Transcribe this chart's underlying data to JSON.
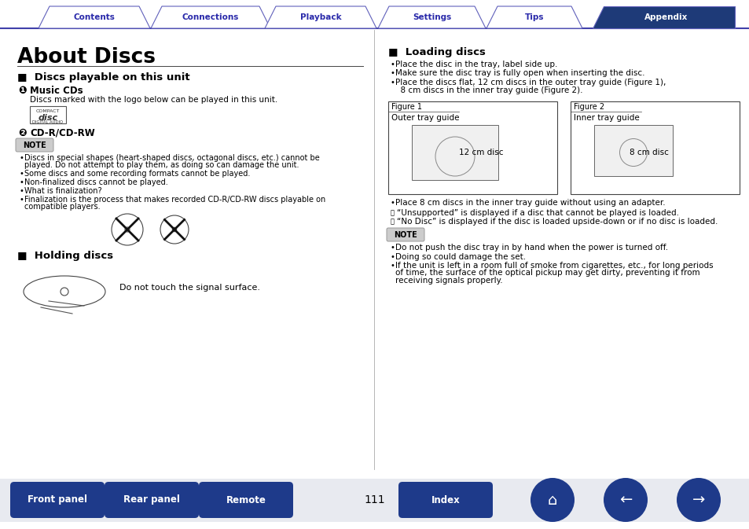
{
  "tab_labels": [
    "Contents",
    "Connections",
    "Playback",
    "Settings",
    "Tips",
    "Appendix"
  ],
  "tab_active": 5,
  "tab_active_color": "#1e3a78",
  "tab_inactive_color": "#ffffff",
  "tab_text_color_active": "#ffffff",
  "tab_text_color_inactive": "#2a2aaa",
  "tab_border_color": "#6060bb",
  "title": "About Discs",
  "section1_title": "■  Discs playable on this unit",
  "num1": "❶",
  "sub1_title": "Music CDs",
  "sub1_text": "Discs marked with the logo below can be played in this unit.",
  "num2": "❷",
  "sub2_title": "CD-R/CD-RW",
  "note_label": "NOTE",
  "note_items": [
    "Discs in special shapes (heart-shaped discs, octagonal discs, etc.) cannot be\nplayed. Do not attempt to play them, as doing so can damage the unit.",
    "Some discs and some recording formats cannot be played.",
    "Non-finalized discs cannot be played.",
    "What is finalization?",
    "Finalization is the process that makes recorded CD-R/CD-RW discs playable on\ncompatible players."
  ],
  "section2_title": "■  Holding discs",
  "holding_text": "Do not touch the signal surface.",
  "section3_title": "■  Loading discs",
  "loading_items": [
    "Place the disc in the tray, label side up.",
    "Make sure the disc tray is fully open when inserting the disc.",
    "Place the discs flat, 12 cm discs in the outer tray guide (Figure 1),\n  8 cm discs in the inner tray guide (Figure 2)."
  ],
  "fig1_label": "Figure 1",
  "fig1_sub": "Outer tray guide",
  "fig1_disc": "12 cm disc",
  "fig2_label": "Figure 2",
  "fig2_sub": "Inner tray guide",
  "fig2_disc": "8 cm disc",
  "loading_extra": "Place 8 cm discs in the inner tray guide without using an adapter.",
  "pencil_items": [
    "“Unsupported” is displayed if a disc that cannot be played is loaded.",
    "“No Disc” is displayed if the disc is loaded upside-down or if no disc is loaded."
  ],
  "note2_items": [
    "Do not push the disc tray in by hand when the power is turned off.",
    "Doing so could damage the set.",
    "If the unit is left in a room full of smoke from cigarettes, etc., for long periods\nof time, the surface of the optical pickup may get dirty, preventing it from\nreceiving signals properly."
  ],
  "page_number": "111",
  "bottom_buttons": [
    "Front panel",
    "Rear panel",
    "Remote",
    "Index"
  ],
  "button_color": "#1e3a8a",
  "bg_color": "#ffffff",
  "text_color": "#000000"
}
